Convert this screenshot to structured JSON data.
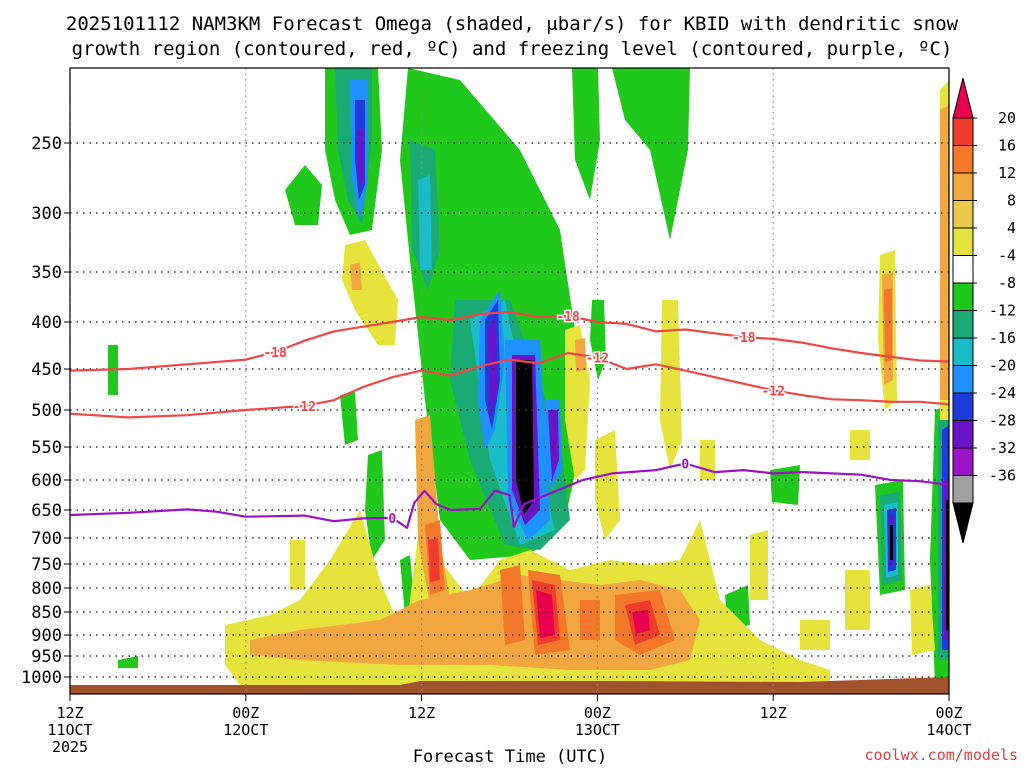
{
  "chart_data": {
    "type": "heatmap",
    "title_line1": "2025101112 NAM3KM Forecast Omega (shaded, μbar/s) for KBID with dendritic snow",
    "title_line2": "growth region (contoured, red, ºC) and freezing level (contoured, purple, ºC)",
    "xlabel": "Forecast Time (UTC)",
    "credit": "coolwx.com/models",
    "x_range_hours": [
      0,
      60
    ],
    "y_range_hPa": [
      1000,
      200
    ],
    "x_ticks": [
      {
        "hour": 0,
        "label1": "12Z",
        "label2": "11OCT",
        "label3": "2025"
      },
      {
        "hour": 12,
        "label1": "00Z",
        "label2": "12OCT",
        "label3": ""
      },
      {
        "hour": 24,
        "label1": "12Z",
        "label2": "",
        "label3": ""
      },
      {
        "hour": 36,
        "label1": "00Z",
        "label2": "13OCT",
        "label3": ""
      },
      {
        "hour": 48,
        "label1": "12Z",
        "label2": "",
        "label3": ""
      },
      {
        "hour": 60,
        "label1": "00Z",
        "label2": "14OCT",
        "label3": ""
      }
    ],
    "y_ticks": [
      250,
      300,
      350,
      400,
      450,
      500,
      550,
      600,
      650,
      700,
      750,
      800,
      850,
      900,
      950,
      1000
    ],
    "colorbar": {
      "labels": [
        "20",
        "16",
        "12",
        "8",
        "4",
        "-4",
        "-8",
        "-12",
        "-16",
        "-20",
        "-24",
        "-28",
        "-32",
        "-36"
      ],
      "colors": [
        "#e8004f",
        "#f03c2d",
        "#f4782a",
        "#f2a640",
        "#eac84a",
        "#e6e43c",
        "#ffffff",
        "#21c81c",
        "#1aaa73",
        "#19bcc8",
        "#1e90ff",
        "#1e3cdc",
        "#6a14c8",
        "#9b14c8",
        "#a0a0a0",
        "#000000"
      ]
    },
    "contours": [
      {
        "name": "minus18",
        "label": "-18",
        "color": "#f04646",
        "points": [
          [
            0,
            452
          ],
          [
            4,
            450
          ],
          [
            8,
            445
          ],
          [
            12,
            440
          ],
          [
            14,
            432
          ],
          [
            16,
            420
          ],
          [
            18,
            410
          ],
          [
            20,
            405
          ],
          [
            22,
            400
          ],
          [
            24,
            395
          ],
          [
            26,
            398
          ],
          [
            28,
            392
          ],
          [
            30,
            390
          ],
          [
            32,
            395
          ],
          [
            34,
            394
          ],
          [
            36,
            400
          ],
          [
            38,
            402
          ],
          [
            40,
            410
          ],
          [
            42,
            408
          ],
          [
            44,
            412
          ],
          [
            46,
            416
          ],
          [
            48,
            418
          ],
          [
            50,
            422
          ],
          [
            52,
            428
          ],
          [
            54,
            433
          ],
          [
            56,
            437
          ],
          [
            58,
            441
          ],
          [
            60,
            442
          ]
        ]
      },
      {
        "name": "minus12",
        "label": "-12",
        "color": "#f04646",
        "points": [
          [
            0,
            505
          ],
          [
            4,
            510
          ],
          [
            8,
            507
          ],
          [
            12,
            500
          ],
          [
            16,
            495
          ],
          [
            18,
            488
          ],
          [
            20,
            472
          ],
          [
            22,
            460
          ],
          [
            24,
            452
          ],
          [
            26,
            458
          ],
          [
            28,
            447
          ],
          [
            30,
            440
          ],
          [
            32,
            444
          ],
          [
            34,
            433
          ],
          [
            36,
            438
          ],
          [
            38,
            450
          ],
          [
            40,
            445
          ],
          [
            42,
            452
          ],
          [
            44,
            460
          ],
          [
            46,
            468
          ],
          [
            48,
            476
          ],
          [
            50,
            482
          ],
          [
            52,
            487
          ],
          [
            54,
            488
          ],
          [
            56,
            490
          ],
          [
            58,
            490
          ],
          [
            60,
            493
          ]
        ]
      },
      {
        "name": "zero",
        "label": "0",
        "color": "#9b12c3",
        "points": [
          [
            0,
            659
          ],
          [
            4,
            655
          ],
          [
            8,
            649
          ],
          [
            10,
            653
          ],
          [
            12,
            662
          ],
          [
            16,
            660
          ],
          [
            18,
            670
          ],
          [
            20,
            665
          ],
          [
            22,
            664
          ],
          [
            23,
            682
          ],
          [
            23.5,
            638
          ],
          [
            24.2,
            618
          ],
          [
            25,
            640
          ],
          [
            26,
            650
          ],
          [
            28,
            648
          ],
          [
            29,
            618
          ],
          [
            30,
            625
          ],
          [
            30.3,
            680
          ],
          [
            31,
            640
          ],
          [
            33,
            620
          ],
          [
            35,
            600
          ],
          [
            37,
            590
          ],
          [
            40,
            585
          ],
          [
            42,
            575
          ],
          [
            44,
            588
          ],
          [
            46,
            585
          ],
          [
            48,
            590
          ],
          [
            50,
            588
          ],
          [
            52,
            590
          ],
          [
            54,
            592
          ],
          [
            56,
            600
          ],
          [
            58,
            602
          ],
          [
            60,
            608
          ]
        ]
      }
    ]
  }
}
